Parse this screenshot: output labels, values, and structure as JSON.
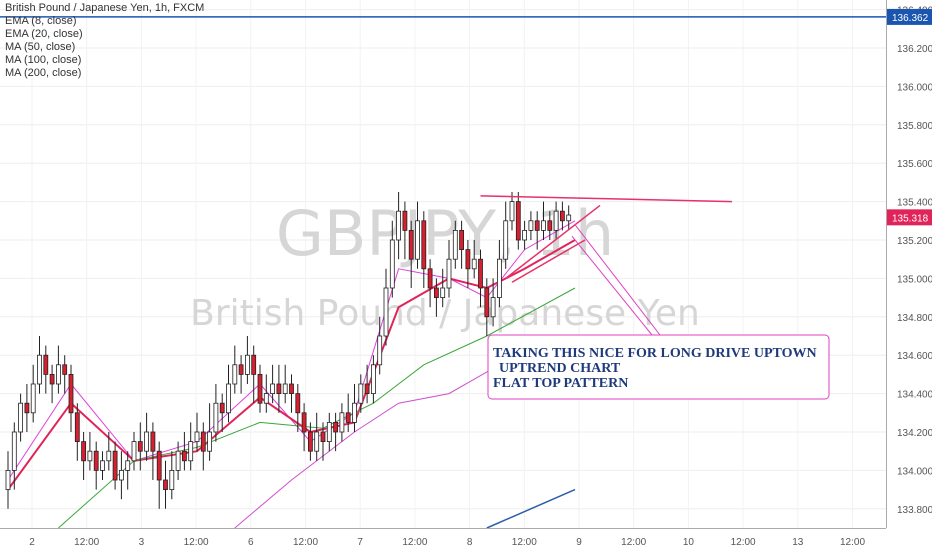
{
  "header": {
    "title": "British Pound / Japanese Yen, 1h, FXCM",
    "indicators": [
      "EMA (8, close)",
      "EMA (20, close)",
      "MA (50, close)",
      "MA (100, close)",
      "MA (200, close)"
    ]
  },
  "watermark": {
    "symbol": "GBPJPY, 1h",
    "name": "British Pound / Japanese Yen"
  },
  "annotation": {
    "lines": [
      "TAKING THIS NICE FOR LONG DRIVE UPTOWN",
      "UPTREND CHART",
      "FLAT TOP PATTERN"
    ]
  },
  "colors": {
    "up": "#ffffff",
    "down": "#d6202f",
    "wick": "#222222",
    "ema8": "#e040e0",
    "ema20": "#e0245a",
    "ma50": "#3aa63a",
    "ma100": "#cc4fcc",
    "ma200": "#2a5fa8",
    "hline": "#1a56b0",
    "price_badge": "#e0245a",
    "hline_badge": "#1a56b0",
    "drawing": "#e8306a"
  },
  "chart_data": {
    "type": "candlestick",
    "title": "British Pound / Japanese Yen, 1h, FXCM",
    "x_tick_labels": [
      "2",
      "12:00",
      "3",
      "12:00",
      "6",
      "12:00",
      "7",
      "12:00",
      "8",
      "12:00",
      "9",
      "12:00",
      "10",
      "12:00",
      "13",
      "12:00"
    ],
    "y_tick_labels": [
      "136.400",
      "136.200",
      "136.000",
      "135.800",
      "135.600",
      "135.400",
      "135.200",
      "135.000",
      "134.800",
      "134.600",
      "134.400",
      "134.200",
      "134.000",
      "133.800"
    ],
    "ylim": [
      133.7,
      136.45
    ],
    "horizontal_line": 136.362,
    "last_price": 135.318,
    "price_labels": [
      "136.362",
      "135.318"
    ],
    "candles": [
      [
        133.9,
        134.0,
        133.8,
        134.1
      ],
      [
        134.0,
        134.2,
        133.9,
        134.25
      ],
      [
        134.2,
        134.35,
        134.15,
        134.4
      ],
      [
        134.35,
        134.3,
        134.2,
        134.45
      ],
      [
        134.3,
        134.45,
        134.25,
        134.55
      ],
      [
        134.45,
        134.6,
        134.4,
        134.7
      ],
      [
        134.6,
        134.5,
        134.4,
        134.65
      ],
      [
        134.5,
        134.45,
        134.35,
        134.55
      ],
      [
        134.45,
        134.55,
        134.4,
        134.65
      ],
      [
        134.55,
        134.5,
        134.4,
        134.6
      ],
      [
        134.5,
        134.3,
        134.2,
        134.55
      ],
      [
        134.3,
        134.15,
        134.05,
        134.35
      ],
      [
        134.15,
        134.05,
        133.95,
        134.2
      ],
      [
        134.05,
        134.1,
        134.0,
        134.2
      ],
      [
        134.1,
        134.0,
        133.9,
        134.15
      ],
      [
        134.0,
        134.05,
        133.95,
        134.1
      ],
      [
        134.05,
        134.1,
        134.0,
        134.2
      ],
      [
        134.1,
        133.95,
        133.9,
        134.15
      ],
      [
        133.95,
        134.0,
        133.85,
        134.1
      ],
      [
        134.0,
        134.05,
        133.9,
        134.1
      ],
      [
        134.05,
        134.15,
        134.0,
        134.2
      ],
      [
        134.15,
        134.1,
        134.0,
        134.25
      ],
      [
        134.1,
        134.2,
        134.05,
        134.3
      ],
      [
        134.2,
        134.1,
        133.95,
        134.25
      ],
      [
        134.1,
        133.95,
        133.8,
        134.15
      ],
      [
        133.95,
        133.9,
        133.8,
        134.05
      ],
      [
        133.9,
        134.0,
        133.85,
        134.1
      ],
      [
        134.0,
        134.1,
        133.95,
        134.15
      ],
      [
        134.1,
        134.05,
        134.0,
        134.2
      ],
      [
        134.05,
        134.15,
        134.0,
        134.25
      ],
      [
        134.15,
        134.2,
        134.1,
        134.3
      ],
      [
        134.2,
        134.1,
        134.0,
        134.25
      ],
      [
        134.1,
        134.2,
        134.05,
        134.35
      ],
      [
        134.2,
        134.35,
        134.15,
        134.45
      ],
      [
        134.35,
        134.3,
        134.2,
        134.4
      ],
      [
        134.3,
        134.45,
        134.25,
        134.55
      ],
      [
        134.45,
        134.55,
        134.4,
        134.65
      ],
      [
        134.55,
        134.5,
        134.4,
        134.6
      ],
      [
        134.5,
        134.6,
        134.45,
        134.7
      ],
      [
        134.6,
        134.5,
        134.35,
        134.65
      ],
      [
        134.5,
        134.35,
        134.3,
        134.55
      ],
      [
        134.35,
        134.4,
        134.3,
        134.5
      ],
      [
        134.4,
        134.45,
        134.35,
        134.55
      ],
      [
        134.45,
        134.4,
        134.3,
        134.55
      ],
      [
        134.4,
        134.45,
        134.35,
        134.55
      ],
      [
        134.45,
        134.4,
        134.3,
        134.5
      ],
      [
        134.4,
        134.3,
        134.2,
        134.45
      ],
      [
        134.3,
        134.2,
        134.1,
        134.35
      ],
      [
        134.2,
        134.1,
        134.05,
        134.25
      ],
      [
        134.1,
        134.2,
        134.05,
        134.3
      ],
      [
        134.2,
        134.15,
        134.05,
        134.25
      ],
      [
        134.15,
        134.25,
        134.1,
        134.3
      ],
      [
        134.25,
        134.2,
        134.1,
        134.3
      ],
      [
        134.2,
        134.3,
        134.15,
        134.35
      ],
      [
        134.3,
        134.25,
        134.2,
        134.4
      ],
      [
        134.25,
        134.35,
        134.2,
        134.45
      ],
      [
        134.35,
        134.45,
        134.3,
        134.5
      ],
      [
        134.45,
        134.4,
        134.35,
        134.55
      ],
      [
        134.4,
        134.55,
        134.35,
        134.6
      ],
      [
        134.55,
        134.7,
        134.5,
        134.8
      ],
      [
        134.7,
        134.95,
        134.65,
        135.05
      ],
      [
        134.95,
        135.2,
        134.9,
        135.3
      ],
      [
        135.2,
        135.35,
        135.1,
        135.45
      ],
      [
        135.35,
        135.25,
        135.1,
        135.4
      ],
      [
        135.25,
        135.1,
        134.95,
        135.3
      ],
      [
        135.1,
        135.3,
        135.05,
        135.4
      ],
      [
        135.3,
        135.05,
        134.95,
        135.35
      ],
      [
        135.05,
        134.95,
        134.85,
        135.1
      ],
      [
        134.95,
        134.9,
        134.8,
        135.0
      ],
      [
        134.9,
        134.95,
        134.85,
        135.05
      ],
      [
        134.95,
        135.1,
        134.9,
        135.2
      ],
      [
        135.1,
        135.25,
        135.05,
        135.3
      ],
      [
        135.25,
        135.15,
        135.05,
        135.3
      ],
      [
        135.15,
        135.05,
        134.95,
        135.2
      ],
      [
        135.05,
        135.1,
        135.0,
        135.2
      ],
      [
        135.1,
        134.95,
        134.85,
        135.15
      ],
      [
        134.95,
        134.8,
        134.7,
        135.0
      ],
      [
        134.8,
        134.9,
        134.75,
        135.0
      ],
      [
        134.9,
        135.1,
        134.85,
        135.2
      ],
      [
        135.1,
        135.3,
        135.05,
        135.4
      ],
      [
        135.3,
        135.4,
        135.25,
        135.45
      ],
      [
        135.4,
        135.2,
        135.15,
        135.45
      ],
      [
        135.2,
        135.25,
        135.15,
        135.3
      ],
      [
        135.25,
        135.3,
        135.2,
        135.35
      ],
      [
        135.3,
        135.25,
        135.15,
        135.35
      ],
      [
        135.25,
        135.3,
        135.2,
        135.4
      ],
      [
        135.3,
        135.25,
        135.2,
        135.35
      ],
      [
        135.25,
        135.35,
        135.2,
        135.4
      ],
      [
        135.35,
        135.3,
        135.25,
        135.4
      ],
      [
        135.3,
        135.33,
        135.25,
        135.38
      ]
    ],
    "series": [
      {
        "name": "EMA (8, close)",
        "values": [
          [
            0,
            133.95
          ],
          [
            10,
            134.45
          ],
          [
            20,
            134.05
          ],
          [
            30,
            134.15
          ],
          [
            40,
            134.45
          ],
          [
            48,
            134.15
          ],
          [
            55,
            134.3
          ],
          [
            62,
            135.05
          ],
          [
            70,
            135.0
          ],
          [
            76,
            134.9
          ],
          [
            82,
            135.15
          ],
          [
            90,
            135.3
          ]
        ]
      },
      {
        "name": "EMA (20, close)",
        "values": [
          [
            0,
            133.9
          ],
          [
            10,
            134.35
          ],
          [
            20,
            134.05
          ],
          [
            30,
            134.1
          ],
          [
            40,
            134.38
          ],
          [
            48,
            134.2
          ],
          [
            55,
            134.25
          ],
          [
            62,
            134.85
          ],
          [
            70,
            135.0
          ],
          [
            76,
            134.95
          ],
          [
            82,
            135.05
          ],
          [
            90,
            135.2
          ]
        ]
      },
      {
        "name": "MA (50, close)",
        "values": [
          [
            8,
            133.7
          ],
          [
            20,
            134.05
          ],
          [
            30,
            134.12
          ],
          [
            40,
            134.25
          ],
          [
            50,
            134.22
          ],
          [
            58,
            134.35
          ],
          [
            66,
            134.55
          ],
          [
            76,
            134.7
          ],
          [
            90,
            134.95
          ]
        ]
      },
      {
        "name": "MA (100, close)",
        "values": [
          [
            36,
            133.7
          ],
          [
            45,
            133.95
          ],
          [
            55,
            134.2
          ],
          [
            62,
            134.35
          ],
          [
            70,
            134.4
          ],
          [
            78,
            134.55
          ],
          [
            90,
            134.7
          ]
        ]
      },
      {
        "name": "MA (200, close)",
        "values": [
          [
            76,
            133.7
          ],
          [
            90,
            133.9
          ]
        ]
      }
    ]
  }
}
